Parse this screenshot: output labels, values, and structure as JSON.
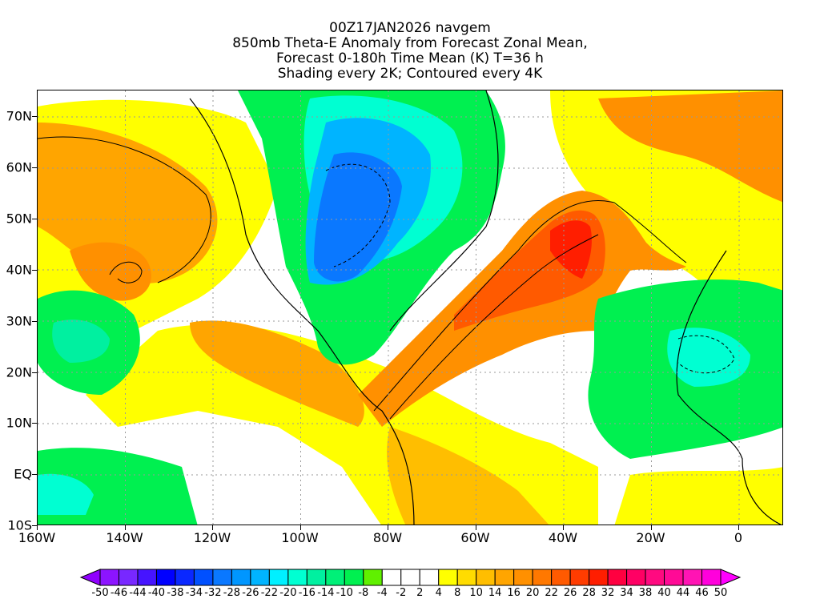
{
  "title": {
    "line1": "00Z17JAN2026 navgem",
    "line2": "850mb Theta-E Anomaly from Forecast Zonal Mean,",
    "line3": "Forecast 0-180h Time Mean (K) T=36 h",
    "line4": "Shading every 2K; Contoured every 4K"
  },
  "axes": {
    "lat_labels": [
      "70N",
      "60N",
      "50N",
      "40N",
      "30N",
      "20N",
      "10N",
      "EQ",
      "10S"
    ],
    "lat_values": [
      70,
      60,
      50,
      40,
      30,
      20,
      10,
      0,
      -10
    ],
    "lon_labels": [
      "160W",
      "140W",
      "120W",
      "100W",
      "80W",
      "60W",
      "40W",
      "20W",
      "0"
    ],
    "lon_values": [
      -160,
      -140,
      -120,
      -100,
      -80,
      -60,
      -40,
      -20,
      0
    ]
  },
  "colorbar": {
    "labels": [
      "-50",
      "-46",
      "-44",
      "-40",
      "-38",
      "-34",
      "-32",
      "-28",
      "-26",
      "-22",
      "-20",
      "-16",
      "-14",
      "-10",
      "-8",
      "-4",
      "-2",
      "2",
      "4",
      "8",
      "10",
      "14",
      "16",
      "20",
      "22",
      "26",
      "28",
      "32",
      "34",
      "38",
      "40",
      "44",
      "46",
      "50"
    ],
    "colors": [
      "#8c14ff",
      "#7828ff",
      "#4614ff",
      "#0000ff",
      "#0a28ff",
      "#0050ff",
      "#0a78ff",
      "#0096ff",
      "#00b4ff",
      "#00f0ff",
      "#00ffd2",
      "#00f0a0",
      "#00f078",
      "#00f050",
      "#60f000",
      "#ffffff",
      "#ffffff",
      "#ffffff",
      "#ffff00",
      "#ffdc00",
      "#ffbe00",
      "#ffa500",
      "#ff9000",
      "#ff7800",
      "#ff5a00",
      "#ff3c00",
      "#ff1e00",
      "#ff0040",
      "#ff0064",
      "#ff0a80",
      "#ff0a96",
      "#ff14b4",
      "#ff00dc"
    ],
    "under_color": "#9000ff",
    "over_color": "#ff00ff"
  }
}
